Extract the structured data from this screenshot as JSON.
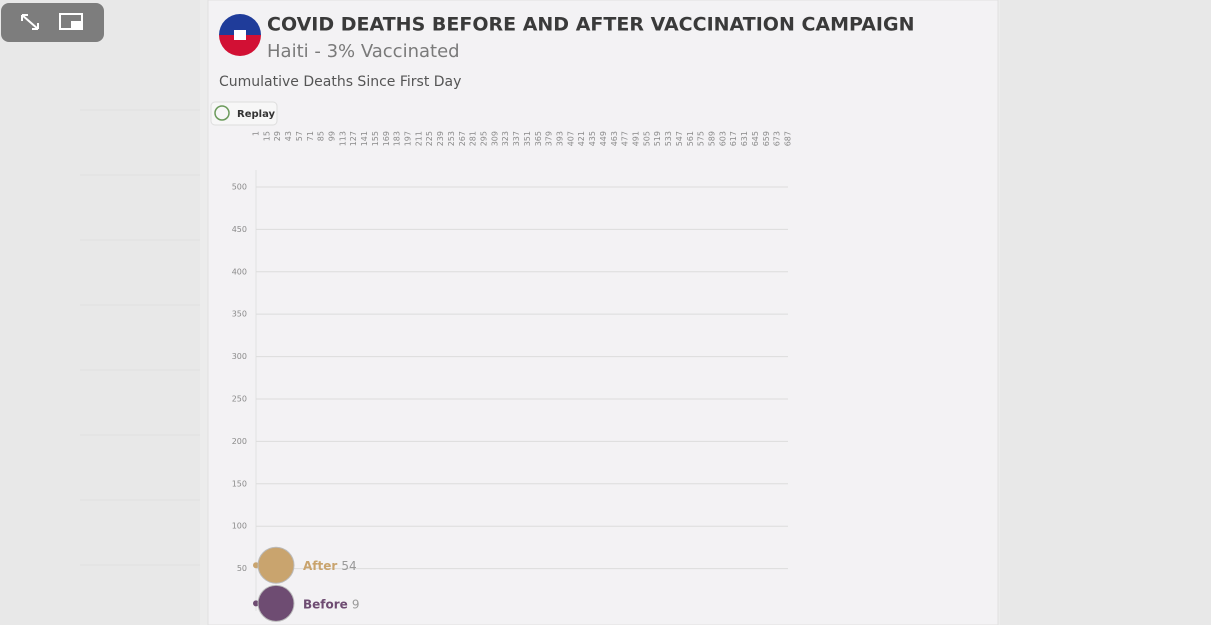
{
  "chart_data": {
    "type": "line",
    "title": "COVID DEATHS BEFORE AND AFTER VACCINATION CAMPAIGN",
    "subtitle": "Haiti - 3% Vaccinated",
    "y_label": "Cumulative Deaths Since First Day",
    "button": "Replay",
    "xlim": [
      1,
      687
    ],
    "xticks": [
      1,
      15,
      29,
      43,
      57,
      71,
      85,
      99,
      113,
      127,
      141,
      155,
      169,
      183,
      197,
      211,
      225,
      239,
      253,
      267,
      281,
      295,
      309,
      323,
      337,
      351,
      365,
      379,
      393,
      407,
      421,
      435,
      449,
      463,
      477,
      491,
      505,
      519,
      533,
      547,
      561,
      575,
      589,
      603,
      617,
      631,
      645,
      659,
      673,
      687
    ],
    "ylim": [
      0,
      520
    ],
    "yticks": [
      50,
      100,
      150,
      200,
      250,
      300,
      350,
      400,
      450,
      500
    ],
    "grid": true,
    "series": [
      {
        "name": "After",
        "color": "#c9a46e",
        "x": [
          1
        ],
        "values": [
          54
        ]
      },
      {
        "name": "Before",
        "color": "#6e4c72",
        "x": [
          1
        ],
        "values": [
          9
        ]
      }
    ]
  }
}
